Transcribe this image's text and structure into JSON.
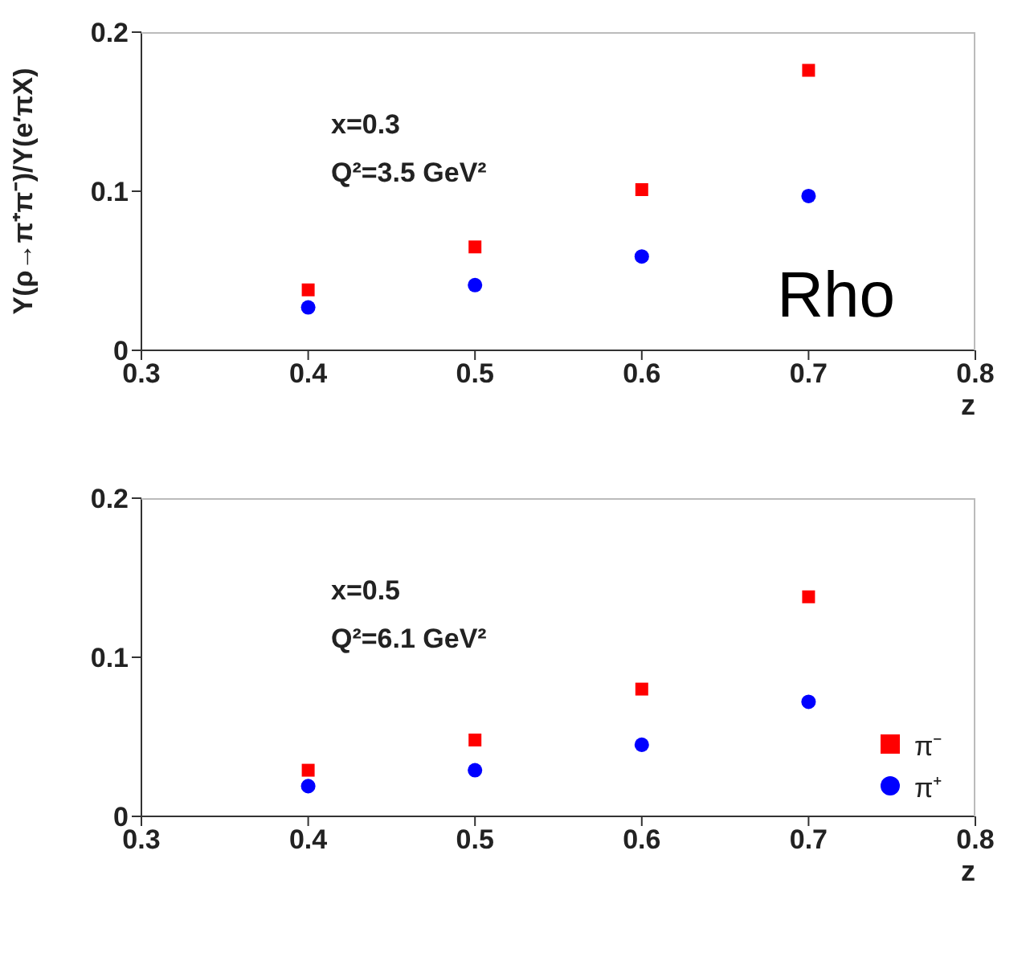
{
  "chart_data": [
    {
      "type": "scatter",
      "ylabel": "Y(ρ→π⁺π⁻)/Y(e′πX)",
      "xlabel": "z",
      "annotations": [
        "x=0.3",
        "Q²=3.5 GeV²",
        "Rho"
      ],
      "x": [
        0.4,
        0.5,
        0.6,
        0.7
      ],
      "xlim": [
        0.3,
        0.8
      ],
      "xticks": [
        0.3,
        0.4,
        0.5,
        0.6,
        0.7,
        0.8
      ],
      "ylim": [
        0,
        0.2
      ],
      "yticks": [
        0,
        0.1,
        0.2
      ],
      "grid": false,
      "legend": false,
      "series": [
        {
          "color": "#ff0000",
          "marker": "square",
          "values": [
            0.038,
            0.065,
            0.101,
            0.176
          ]
        },
        {
          "color": "#0000ff",
          "marker": "circle",
          "values": [
            0.027,
            0.041,
            0.059,
            0.097
          ]
        }
      ]
    },
    {
      "type": "scatter",
      "xlabel": "z",
      "annotations": [
        "x=0.5",
        "Q²=6.1 GeV²"
      ],
      "x": [
        0.4,
        0.5,
        0.6,
        0.7
      ],
      "xlim": [
        0.3,
        0.8
      ],
      "xticks": [
        0.3,
        0.4,
        0.5,
        0.6,
        0.7,
        0.8
      ],
      "ylim": [
        0,
        0.2
      ],
      "yticks": [
        0,
        0.1,
        0.2
      ],
      "grid": false,
      "legend": "bottom right",
      "series": [
        {
          "name": "π⁻",
          "color": "#ff0000",
          "marker": "square",
          "values": [
            0.029,
            0.048,
            0.08,
            0.138
          ]
        },
        {
          "name": "π⁺",
          "color": "#0000ff",
          "marker": "circle",
          "values": [
            0.019,
            0.029,
            0.045,
            0.072
          ]
        }
      ]
    }
  ]
}
